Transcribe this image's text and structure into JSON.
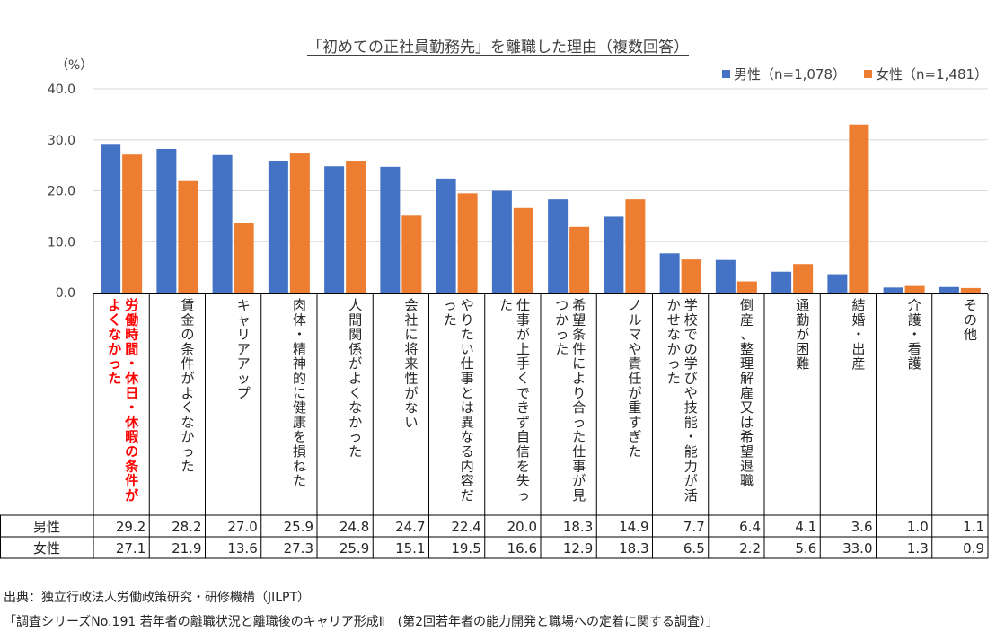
{
  "chart_data": {
    "type": "bar",
    "title": "「初めての正社員勤務先」を離職した理由（複数回答）",
    "ylabel": "（%）",
    "ylim": [
      0,
      40
    ],
    "yticks": [
      "0.0",
      "10.0",
      "20.0",
      "30.0",
      "40.0"
    ],
    "grid": true,
    "legend_position": "top-right",
    "categories": [
      "労働時間・休日・休暇の条件がよくなかった",
      "賃金の条件がよくなかった",
      "キャリアアップ",
      "肉体・精神的に健康を損ねた",
      "人間関係がよくなかった",
      "会社に将来性がない",
      "やりたい仕事とは異なる内容だった",
      "仕事が上手くできず自信を失った",
      "希望条件により合った仕事が見つかった",
      "ノルマや責任が重すぎた",
      "学校での学びや技能・能力が活かせなかった",
      "倒産、整理解雇又は希望退職",
      "通勤が困難",
      "結婚・出産",
      "介護・看護",
      "その他"
    ],
    "series": [
      {
        "name": "男性（n=1,078）",
        "table_label": "男性",
        "color": "#4472C4",
        "values": [
          29.2,
          28.2,
          27.0,
          25.9,
          24.8,
          24.7,
          22.4,
          20.0,
          18.3,
          14.9,
          7.7,
          6.4,
          4.1,
          3.6,
          1.0,
          1.1
        ],
        "labels": [
          "29.2",
          "28.2",
          "27.0",
          "25.9",
          "24.8",
          "24.7",
          "22.4",
          "20.0",
          "18.3",
          "14.9",
          "7.7",
          "6.4",
          "4.1",
          "3.6",
          "1.0",
          "1.1"
        ]
      },
      {
        "name": "女性（n=1,481）",
        "table_label": "女性",
        "color": "#ED7D31",
        "values": [
          27.1,
          21.9,
          13.6,
          27.3,
          25.9,
          15.1,
          19.5,
          16.6,
          12.9,
          18.3,
          6.5,
          2.2,
          5.6,
          33.0,
          1.3,
          0.9
        ],
        "labels": [
          "27.1",
          "21.9",
          "13.6",
          "27.3",
          "25.9",
          "15.1",
          "19.5",
          "16.6",
          "12.9",
          "18.3",
          "6.5",
          "2.2",
          "5.6",
          "33.0",
          "1.3",
          "0.9"
        ]
      }
    ],
    "highlight_category_index": 0,
    "highlight_color": "#FF0000",
    "gridline_color": "#D9D9D9",
    "border_color": "#000000"
  },
  "source": {
    "line1": "出典：独立行政法人労働政策研究・研修機構（JILPT）",
    "line2": "「調査シリーズNo.191 若年者の離職状況と離職後のキャリア形成Ⅱ　(第2回若年者の能力開発と職場への定着に関する調査）」"
  }
}
